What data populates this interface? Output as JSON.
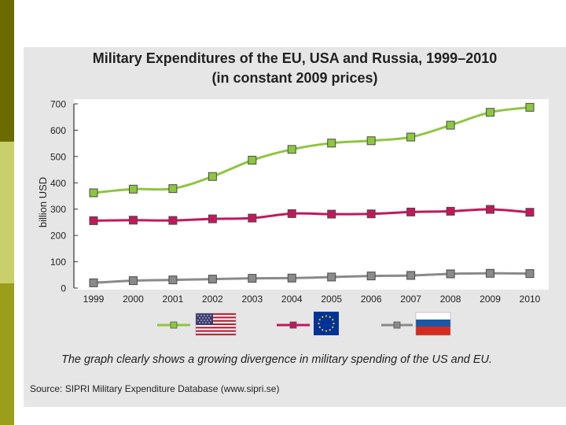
{
  "slide": {
    "title_line1": "Military Expenditures of the EU, USA and Russia, 1999–2010",
    "title_line2": "(in constant 2009 prices)",
    "caption": "The graph clearly shows a growing divergence in military spending of the US and EU.",
    "source": "Source: SIPRI Military Expenditure Database (www.sipri.se)"
  },
  "colors": {
    "usa": "#8dc63f",
    "eu": "#c2185b",
    "russia": "#8a8a8a",
    "axis": "#333333",
    "plot_bg": "#ffffff"
  },
  "chart_data": {
    "type": "line",
    "title": "Military Expenditures of the EU, USA and Russia, 1999–2010",
    "subtitle": "(in constant 2009 prices)",
    "xlabel": "",
    "ylabel": "billion USD",
    "ylim": [
      0,
      700
    ],
    "yticks": [
      "0",
      "100",
      "200",
      "300",
      "400",
      "500",
      "600",
      "700"
    ],
    "categories": [
      "1999",
      "2000",
      "2001",
      "2002",
      "2003",
      "2004",
      "2005",
      "2006",
      "2007",
      "2008",
      "2009",
      "2010"
    ],
    "grid": false,
    "legend_position": "bottom",
    "series": [
      {
        "name": "USA",
        "legend_icon": "us-flag-icon",
        "color": "#8dc63f",
        "values": [
          362,
          376,
          378,
          424,
          486,
          527,
          551,
          560,
          574,
          619,
          668,
          687
        ]
      },
      {
        "name": "EU",
        "legend_icon": "eu-flag-icon",
        "color": "#c2185b",
        "values": [
          256,
          258,
          257,
          263,
          266,
          283,
          281,
          282,
          289,
          292,
          299,
          288
        ]
      },
      {
        "name": "Russia",
        "legend_icon": "russia-flag-icon",
        "color": "#8a8a8a",
        "values": [
          20,
          28,
          31,
          34,
          37,
          38,
          42,
          46,
          48,
          54,
          56,
          55
        ]
      }
    ]
  }
}
